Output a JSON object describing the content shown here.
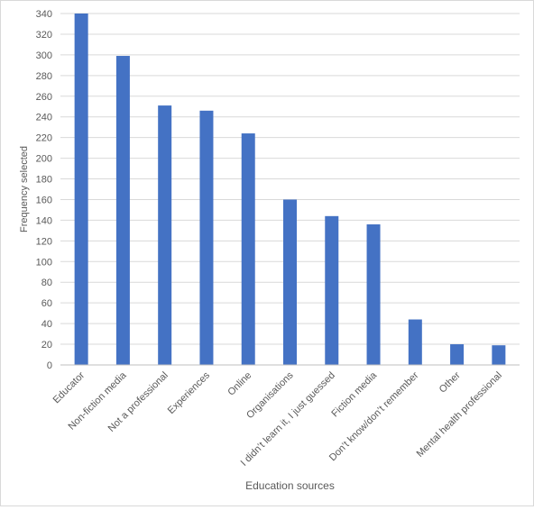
{
  "chart_data": {
    "type": "bar",
    "categories": [
      "Educator",
      "Non-fiction media",
      "Not a professional",
      "Experiences",
      "Online",
      "Organisations",
      "I didn’t learn it, I just guessed",
      "Fiction media",
      "Don’t know/don’t remember",
      "Other",
      "Mental health professional"
    ],
    "values": [
      340,
      299,
      251,
      246,
      224,
      160,
      144,
      136,
      44,
      20,
      19
    ],
    "title": "",
    "xlabel": "Education sources",
    "ylabel": "Frequency selected",
    "ylim": [
      0,
      340
    ],
    "yticks": [
      0,
      20,
      40,
      60,
      80,
      100,
      120,
      140,
      160,
      180,
      200,
      220,
      240,
      260,
      280,
      300,
      320,
      340
    ],
    "grid": true,
    "legend": "none",
    "bar_color": "#4472C4",
    "grid_color": "#d9d9d9",
    "axis_color": "#bfbfbf",
    "text_color": "#595959"
  }
}
